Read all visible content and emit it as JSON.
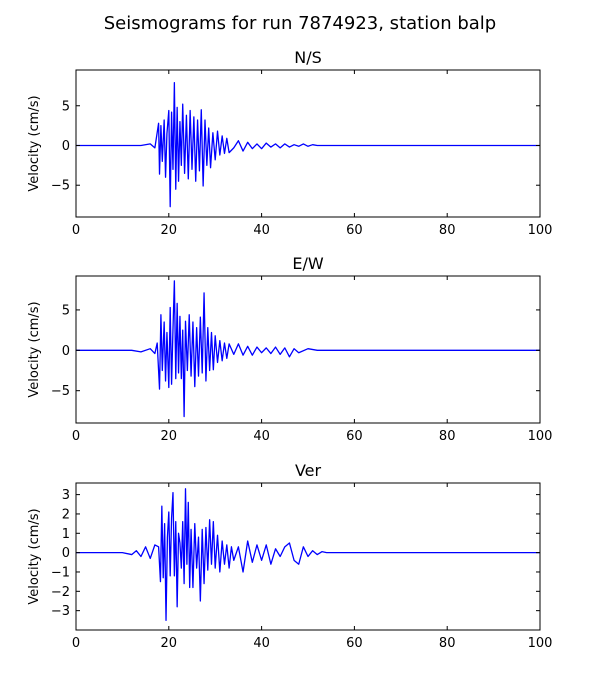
{
  "figure": {
    "suptitle": "Seismograms for run 7874923, station balp"
  },
  "chart_data": [
    {
      "type": "line",
      "title": "N/S",
      "xlabel": "",
      "ylabel": "Velocity (cm/s)",
      "xlim": [
        0,
        100
      ],
      "ylim": [
        -9,
        9.5
      ],
      "xticks": [
        0,
        20,
        40,
        60,
        80,
        100
      ],
      "yticks": [
        -5,
        0,
        5
      ],
      "grid": false,
      "line_color": "#0000ff",
      "series": [
        {
          "x": [
            0,
            14,
            16,
            17,
            17.8,
            18,
            18.3,
            18.6,
            19,
            19.3,
            19.6,
            20,
            20.3,
            20.6,
            20.9,
            21.2,
            21.5,
            21.8,
            22.1,
            22.4,
            22.7,
            23,
            23.4,
            23.8,
            24.2,
            24.6,
            25,
            25.4,
            25.8,
            26.2,
            26.6,
            27,
            27.4,
            27.8,
            28.2,
            28.6,
            29,
            29.5,
            30,
            30.5,
            31,
            31.5,
            32,
            32.5,
            33,
            34,
            35,
            36,
            37,
            38,
            39,
            40,
            41,
            42,
            43,
            44,
            45,
            46,
            47,
            48,
            49,
            50,
            51,
            52,
            54,
            100
          ],
          "y": [
            0,
            0,
            0.2,
            -0.3,
            2.8,
            -3.6,
            2.5,
            -2,
            3.2,
            -4,
            1.5,
            4.4,
            -7.7,
            4.2,
            -3,
            7.9,
            -5.5,
            4.8,
            -4.5,
            3,
            -2.5,
            5.2,
            -3.5,
            3.8,
            -4.2,
            4.4,
            -3,
            3.6,
            -4.5,
            3.2,
            -3.2,
            4.5,
            -5.1,
            3.2,
            -2.5,
            2.2,
            -2.8,
            1.6,
            -1.8,
            1.8,
            -1.2,
            1.2,
            -1,
            0.9,
            -0.9,
            -0.3,
            0.6,
            -0.7,
            0.4,
            -0.4,
            0.2,
            -0.4,
            0.3,
            -0.2,
            0.2,
            -0.3,
            0.2,
            -0.2,
            0.1,
            -0.1,
            0.2,
            -0.1,
            0.1,
            0,
            0,
            0
          ]
        }
      ]
    },
    {
      "type": "line",
      "title": "E/W",
      "xlabel": "",
      "ylabel": "Velocity (cm/s)",
      "xlim": [
        0,
        100
      ],
      "ylim": [
        -9,
        9.2
      ],
      "xticks": [
        0,
        20,
        40,
        60,
        80,
        100
      ],
      "yticks": [
        -5,
        0,
        5
      ],
      "grid": false,
      "line_color": "#0000ff",
      "series": [
        {
          "x": [
            0,
            12,
            14,
            16,
            17,
            17.5,
            18,
            18.3,
            18.6,
            19,
            19.3,
            19.6,
            20,
            20.3,
            20.6,
            20.9,
            21.2,
            21.5,
            21.8,
            22.1,
            22.4,
            22.7,
            23,
            23.3,
            23.6,
            24,
            24.4,
            24.8,
            25.2,
            25.6,
            26,
            26.4,
            26.8,
            27.2,
            27.6,
            28,
            28.4,
            28.8,
            29.2,
            29.6,
            30,
            30.5,
            31,
            31.5,
            32,
            32.5,
            33,
            34,
            35,
            36,
            37,
            38,
            39,
            40,
            41,
            42,
            43,
            44,
            45,
            46,
            47,
            48,
            50,
            52,
            54,
            100
          ],
          "y": [
            0,
            0,
            -0.2,
            0.2,
            -0.4,
            0.9,
            -4.8,
            4.4,
            -2.5,
            3.5,
            -3.8,
            2.2,
            -4.6,
            5.3,
            -4.2,
            2.6,
            8.6,
            -3.5,
            5.8,
            -2.8,
            4.2,
            -3.5,
            2.5,
            -8.2,
            3.6,
            -2.5,
            4.4,
            -3.2,
            3.5,
            -4.5,
            2.8,
            -3.2,
            4.1,
            -2.8,
            7.1,
            -3.8,
            2.8,
            -2.5,
            2.2,
            -2.4,
            1.8,
            -1.5,
            1.2,
            -1.3,
            0.9,
            -1,
            0.8,
            -0.5,
            0.8,
            -0.6,
            0.5,
            -0.6,
            0.4,
            -0.3,
            0.3,
            -0.4,
            0.4,
            -0.5,
            0.3,
            -0.8,
            0.2,
            -0.3,
            0.2,
            0,
            0,
            0
          ]
        }
      ]
    },
    {
      "type": "line",
      "title": "Ver",
      "xlabel": "",
      "ylabel": "Velocity (cm/s)",
      "xlim": [
        0,
        100
      ],
      "ylim": [
        -4,
        3.6
      ],
      "xticks": [
        0,
        20,
        40,
        60,
        80,
        100
      ],
      "yticks": [
        -3,
        -2,
        -1,
        0,
        1,
        2,
        3
      ],
      "grid": false,
      "line_color": "#0000ff",
      "series": [
        {
          "x": [
            0,
            10,
            12,
            13,
            14,
            15,
            16,
            17,
            17.8,
            18.2,
            18.5,
            18.8,
            19.1,
            19.4,
            19.7,
            20,
            20.3,
            20.6,
            20.9,
            21.2,
            21.5,
            21.8,
            22.1,
            22.4,
            22.7,
            23,
            23.3,
            23.6,
            23.9,
            24.2,
            24.5,
            24.8,
            25.2,
            25.6,
            26,
            26.4,
            26.8,
            27.2,
            27.6,
            28,
            28.4,
            28.8,
            29.2,
            29.6,
            30,
            30.5,
            31,
            31.5,
            32,
            32.5,
            33,
            33.5,
            34,
            35,
            36,
            37,
            38,
            39,
            40,
            41,
            42,
            43,
            44,
            45,
            46,
            47,
            48,
            49,
            50,
            51,
            52,
            53,
            54,
            56,
            100
          ],
          "y": [
            0,
            0,
            -0.1,
            0.1,
            -0.2,
            0.3,
            -0.3,
            0.4,
            0.3,
            -1.5,
            2.4,
            -1.3,
            1.5,
            -3.5,
            0.8,
            2.1,
            -1.2,
            1.8,
            3.1,
            -1.2,
            1.6,
            -2.8,
            1,
            0.5,
            -0.8,
            1.6,
            -1.6,
            3.3,
            -0.6,
            2.6,
            -1.8,
            1.2,
            -1.8,
            1.5,
            -0.8,
            0.8,
            -2.5,
            1.2,
            -1.6,
            1.3,
            -0.9,
            1.7,
            -0.6,
            1.6,
            -0.8,
            0.9,
            -1,
            0.6,
            -0.6,
            0.4,
            -0.8,
            0.3,
            -0.4,
            0.3,
            -1,
            0.6,
            -0.5,
            0.4,
            -0.4,
            0.4,
            -0.6,
            0.2,
            -0.2,
            0.3,
            0.5,
            -0.4,
            -0.6,
            0.3,
            -0.2,
            0.1,
            -0.1,
            0.05,
            0,
            0,
            0
          ]
        }
      ]
    }
  ]
}
